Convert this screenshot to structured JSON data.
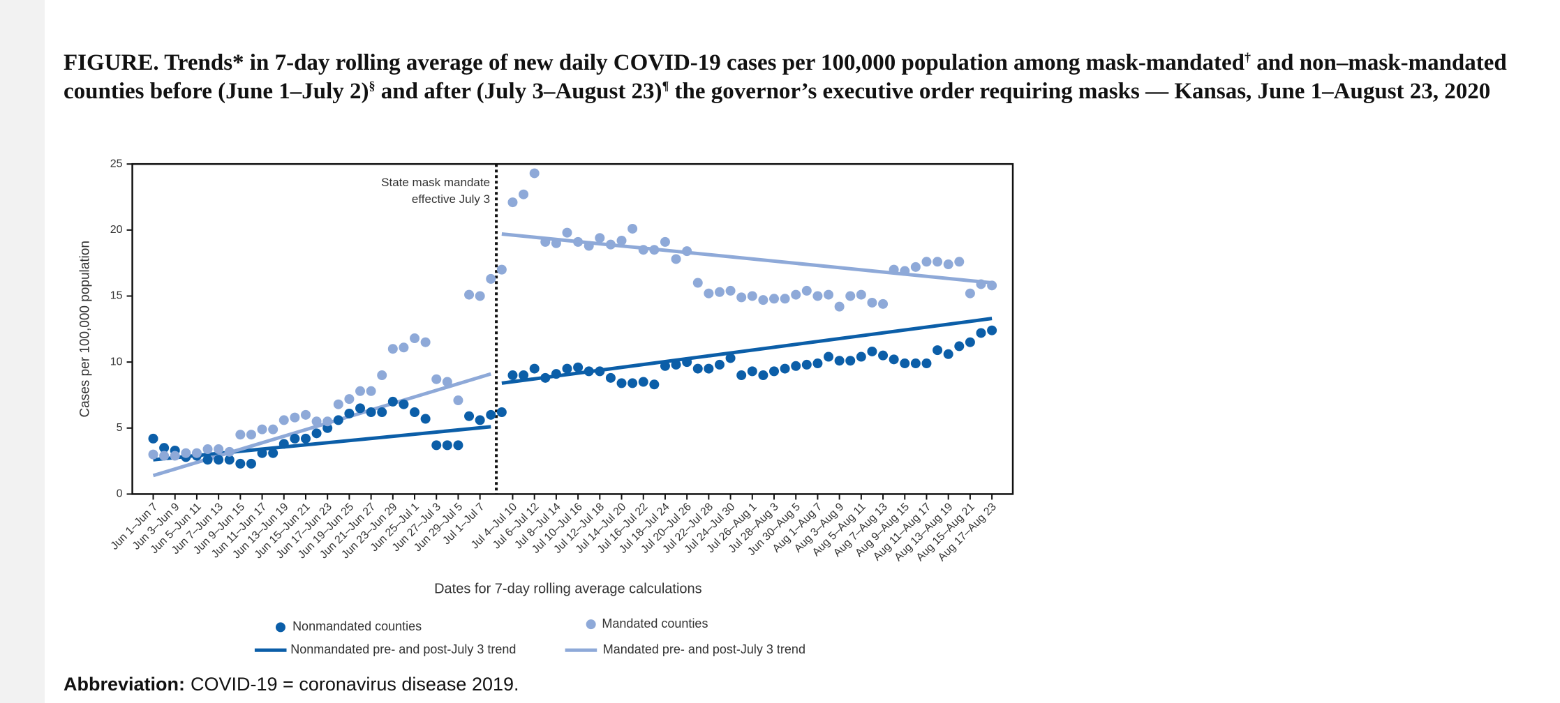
{
  "caption": {
    "parts": [
      "FIGURE. Trends* in 7-day rolling average of new daily COVID-19 cases per 100,000 population among mask-mandated",
      " and non–mask-mandated counties before (June 1–July 2)",
      " and after (July 3–August 23)",
      " the governor’s executive order requiring masks — Kansas, June 1–August 23, 2020"
    ],
    "marks": [
      "†",
      "§",
      "¶"
    ]
  },
  "chart_data": {
    "type": "scatter",
    "y_label": "Cases per 100,000 population",
    "x_label": "Dates for 7-day rolling average calculations",
    "annotation": [
      "State mask mandate",
      "effective July 3"
    ],
    "categories": [
      "Jun 1–Jun 7",
      null,
      "Jun 3–Jun 9",
      null,
      "Jun 5–Jun 11",
      null,
      "Jun 7–Jun 13",
      null,
      "Jun 9–Jun 15",
      null,
      "Jun 11–Jun 17",
      null,
      "Jun 13–Jun 19",
      null,
      "Jun 15–Jun 21",
      null,
      "Jun 17–Jun 23",
      null,
      "Jun 19–Jun 25",
      null,
      "Jun 21–Jun 27",
      null,
      "Jun 23–Jun 29",
      null,
      "Jun 25–Jul 1",
      null,
      "Jun 27–Jul 3",
      null,
      "Jun 29–Jul 5",
      null,
      "Jul 1–Jul 7",
      null,
      null,
      "Jul 4–Jul 10",
      null,
      "Jul 6–Jul 12",
      null,
      "Jul 8–Jul 14",
      null,
      "Jul 10–Jul 16",
      null,
      "Jul 12–Jul 18",
      null,
      "Jul 14–Jul 20",
      null,
      "Jul 16–Jul 22",
      null,
      "Jul 18–Jul 24",
      null,
      "Jul 20–Jul 26",
      null,
      "Jul 22–Jul 28",
      null,
      "Jul 24–Jul 30",
      null,
      "Jul 26–Aug 1",
      null,
      "Jul 28–Aug 3",
      null,
      "Jun 30–Aug 5",
      null,
      "Aug 1–Aug 7",
      null,
      "Aug 3–Aug 9",
      null,
      "Aug 5–Aug 11",
      null,
      "Aug 7–Aug 13",
      null,
      "Aug 9–Aug 15",
      null,
      "Aug 11–Aug 17",
      null,
      "Aug 13–Aug 19",
      null,
      "Aug 15–Aug 21",
      null,
      "Aug 17–Aug 23"
    ],
    "series": [
      {
        "name": "Nonmandated counties",
        "color": "#0b5ea8",
        "values": [
          4.2,
          3.5,
          3.3,
          2.8,
          2.9,
          2.6,
          2.6,
          2.6,
          2.3,
          2.3,
          3.1,
          3.1,
          3.8,
          4.2,
          4.2,
          4.6,
          5.0,
          5.6,
          6.1,
          6.5,
          6.2,
          6.2,
          7.0,
          6.8,
          6.2,
          5.7,
          3.7,
          3.7,
          3.7,
          5.9,
          5.6,
          6.0,
          6.2,
          9.0,
          9.0,
          9.5,
          8.8,
          9.1,
          9.5,
          9.6,
          9.3,
          9.3,
          8.8,
          8.4,
          8.4,
          8.5,
          8.3,
          9.7,
          9.8,
          10.0,
          9.5,
          9.5,
          9.8,
          10.3,
          9.0,
          9.3,
          9.0,
          9.3,
          9.5,
          9.7,
          9.8,
          9.9,
          10.4,
          10.1,
          10.1,
          10.4,
          10.8,
          10.5,
          10.2,
          9.9,
          9.9,
          9.9,
          10.9,
          10.6,
          11.2,
          11.5,
          12.2,
          12.4
        ]
      },
      {
        "name": "Mandated counties",
        "color": "#8ea9d8",
        "values": [
          3.0,
          2.9,
          2.9,
          3.1,
          3.1,
          3.4,
          3.4,
          3.2,
          4.5,
          4.5,
          4.9,
          4.9,
          5.6,
          5.8,
          6.0,
          5.5,
          5.5,
          6.8,
          7.2,
          7.8,
          7.8,
          9.0,
          11.0,
          11.1,
          11.8,
          11.5,
          8.7,
          8.5,
          7.1,
          15.1,
          15.0,
          16.3,
          17.0,
          22.1,
          22.7,
          24.3,
          19.1,
          19.0,
          19.8,
          19.1,
          18.8,
          19.4,
          18.9,
          19.2,
          20.1,
          18.5,
          18.5,
          19.1,
          17.8,
          18.4,
          16.0,
          15.2,
          15.3,
          15.4,
          14.9,
          15.0,
          14.7,
          14.8,
          14.8,
          15.1,
          15.4,
          15.0,
          15.1,
          14.2,
          15.0,
          15.1,
          14.5,
          14.4,
          17.0,
          16.9,
          17.2,
          17.6,
          17.6,
          17.4,
          17.6,
          15.2,
          15.9,
          15.8
        ]
      }
    ],
    "periods": [
      [
        0,
        31
      ],
      [
        32,
        77
      ]
    ],
    "trends": [
      {
        "name": "Nonmandated pre- and post-July 3 trend",
        "color": "#0b5ea8",
        "values": [
          [
            2.6,
            5.1
          ],
          [
            8.4,
            13.3
          ]
        ]
      },
      {
        "name": "Mandated pre- and post-July 3 trend",
        "color": "#8ea9d8",
        "values": [
          [
            1.4,
            9.1
          ],
          [
            19.7,
            16.0
          ]
        ]
      }
    ],
    "ylim": [
      0,
      25
    ],
    "yticks": [
      0,
      5,
      10,
      15,
      20,
      25
    ],
    "grid": false
  },
  "footnote": {
    "term": "Abbreviation:",
    "text": "COVID-19 = coronavirus disease 2019."
  }
}
